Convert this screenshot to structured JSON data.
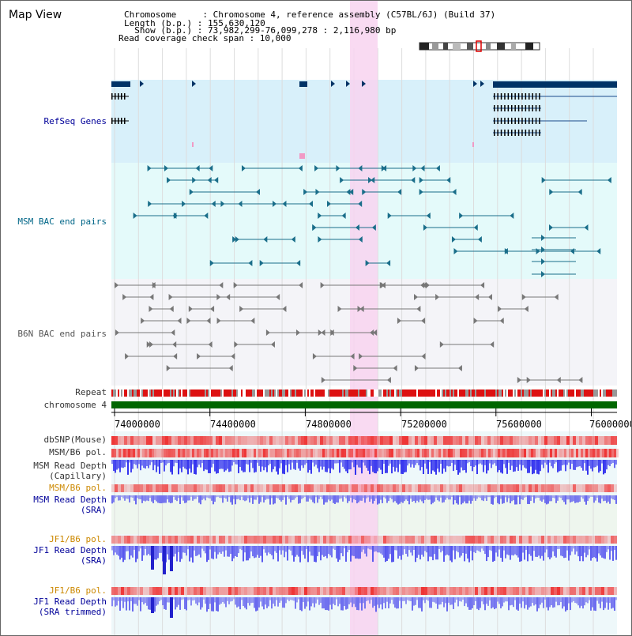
{
  "window": {
    "title": "Map View"
  },
  "header": {
    "lines": [
      "Chromosome     : Chromosome 4, reference assembly (C57BL/6J) (Build 37)",
      "Length (b.p.) : 155,630,120",
      "  Show (b.p.) : 73,982,299-76,099,278 : 2,116,980 bp",
      "Read coverage check span : 10,000"
    ]
  },
  "tracks": {
    "refseq": "RefSeq Genes",
    "msm_bac": "MSM BAC end pairs",
    "b6n_bac": "B6N BAC end pairs",
    "repeat": "Repeat",
    "chromosome": "chromosome 4",
    "dbsnp": "dbSNP(Mouse)",
    "msm_pol": "MSM/B6 pol.",
    "msm_depth_cap_1": "MSM Read Depth",
    "msm_depth_cap_2": "(Capillary)",
    "msm_pol_2": "MSM/B6 pol.",
    "msm_depth_sra_1": "MSM Read Depth",
    "msm_depth_sra_2": "(SRA)",
    "jf1_pol": "JF1/B6 pol.",
    "jf1_depth_1": "JF1 Read Depth",
    "jf1_depth_2": "(SRA)",
    "jf1_pol_2": "JF1/B6 pol.",
    "jf1_trim_1": "JF1 Read Depth",
    "jf1_trim_2": "(SRA trimmed)"
  },
  "axis": {
    "ticks": [
      "74000000",
      "74400000",
      "74800000",
      "75200000",
      "75600000",
      "76000000"
    ]
  },
  "colors": {
    "highlight": "#f8d4f0",
    "refseq_bg": "#d8f0fa",
    "msm_bg": "#e4fafa",
    "b6n_bg": "#f4f4f8",
    "gene": "#003366",
    "msm_pair": "#1a6e8a",
    "b6n_pair": "#777777",
    "depth_blue": "#3333ee",
    "chrom_green": "#006600"
  }
}
